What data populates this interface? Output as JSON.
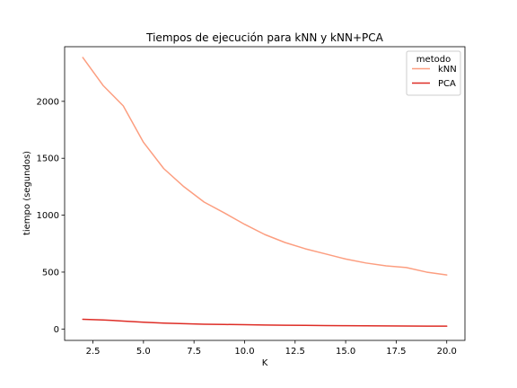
{
  "chart_data": {
    "type": "line",
    "title": "Tiempos de ejecución para kNN y kNN+PCA",
    "xlabel": "K",
    "ylabel": "tiempo (segundos)",
    "xlim": [
      1.1,
      20.9
    ],
    "ylim": [
      -100,
      2480
    ],
    "xticks": [
      2.5,
      5.0,
      7.5,
      10.0,
      12.5,
      15.0,
      17.5,
      20.0
    ],
    "xtick_labels": [
      "2.5",
      "5.0",
      "7.5",
      "10.0",
      "12.5",
      "15.0",
      "17.5",
      "20.0"
    ],
    "yticks": [
      0,
      500,
      1000,
      1500,
      2000
    ],
    "ytick_labels": [
      "0",
      "500",
      "1000",
      "1500",
      "2000"
    ],
    "grid": false,
    "legend": {
      "title": "metodo",
      "position": "top-right"
    },
    "x": [
      2,
      3,
      4,
      5,
      6,
      7,
      8,
      9,
      10,
      11,
      12,
      13,
      14,
      15,
      16,
      17,
      18,
      19,
      20
    ],
    "series": [
      {
        "name": "kNN",
        "color": "#fc9e80",
        "values": [
          2385,
          2140,
          1960,
          1640,
          1410,
          1250,
          1115,
          1020,
          920,
          830,
          760,
          705,
          660,
          615,
          580,
          555,
          540,
          500,
          475
        ]
      },
      {
        "name": "PCA",
        "color": "#de2d26",
        "values": [
          85,
          80,
          70,
          60,
          52,
          47,
          42,
          40,
          38,
          35,
          33,
          32,
          30,
          29,
          28,
          27,
          26,
          25,
          25
        ]
      }
    ]
  }
}
